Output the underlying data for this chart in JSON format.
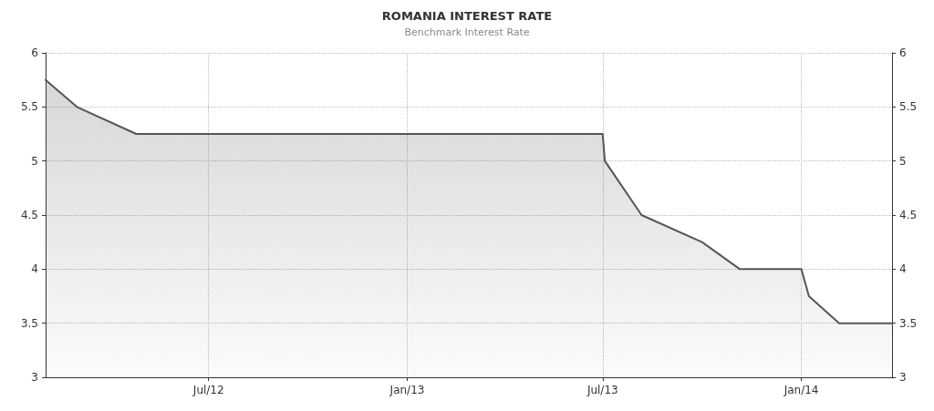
{
  "chart_data": {
    "type": "area",
    "title": "ROMANIA INTEREST RATE",
    "subtitle": "Benchmark Interest Rate",
    "x": [
      "2012-02-01",
      "2012-03-01",
      "2012-04-25",
      "2013-07-01",
      "2013-07-03",
      "2013-08-06",
      "2013-10-01",
      "2013-11-05",
      "2014-01-01",
      "2014-01-08",
      "2014-02-05",
      "2014-03-26"
    ],
    "series": [
      {
        "color": "#555555",
        "values": [
          5.75,
          5.5,
          5.25,
          5.25,
          5.0,
          4.5,
          4.25,
          4.0,
          4.0,
          3.75,
          3.5,
          3.5
        ]
      }
    ],
    "xlim": [
      "2012-02-01",
      "2014-03-26"
    ],
    "xticks": [
      {
        "value": "2012-07-01",
        "label": "Jul/12"
      },
      {
        "value": "2013-01-01",
        "label": "Jan/13"
      },
      {
        "value": "2013-07-01",
        "label": "Jul/13"
      },
      {
        "value": "2014-01-01",
        "label": "Jan/14"
      }
    ],
    "ylim": [
      3,
      6
    ],
    "yticks": [
      3,
      3.5,
      4,
      4.5,
      5,
      5.5,
      6
    ],
    "y2lim": [
      3,
      6
    ],
    "y2ticks": [
      3,
      3.5,
      4,
      4.5,
      5,
      5.5,
      6
    ],
    "grid": true
  }
}
